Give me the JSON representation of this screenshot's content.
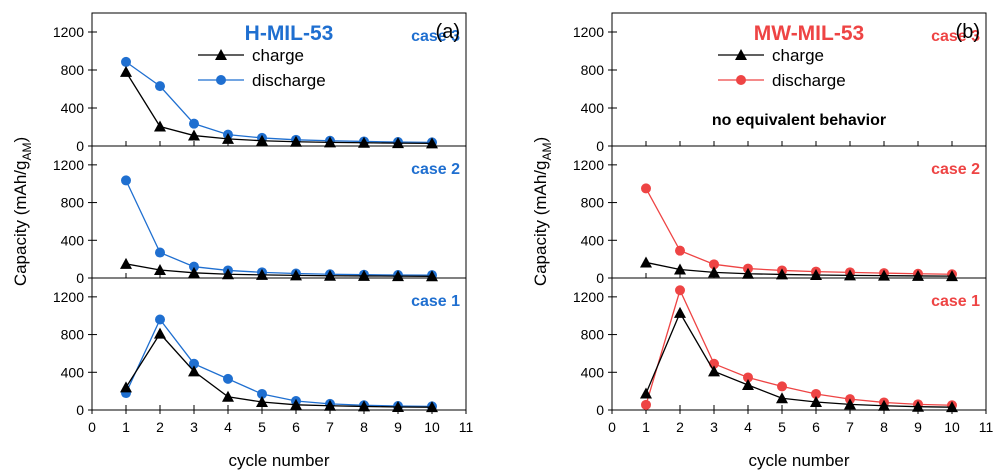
{
  "colors": {
    "axis": "#000000",
    "charge": "#000000",
    "blue": "#1f6fd0",
    "red": "#ee4444"
  },
  "chart_data": [
    {
      "type": "line",
      "title": "H-MIL-53",
      "panel_label": "(a)",
      "accent": "#1f6fd0",
      "xlabel": "cycle number",
      "ylabel": "Capacity (mAh/g",
      "ylabel_sub": "AM",
      "ylabel_end": ")",
      "xlim": [
        0,
        11
      ],
      "ylim": [
        0,
        1400
      ],
      "x_ticks": [
        "0",
        "1",
        "2",
        "3",
        "4",
        "5",
        "6",
        "7",
        "8",
        "9",
        "10",
        "11"
      ],
      "y_ticks": [
        "0",
        "400",
        "800",
        "1200"
      ],
      "legend": {
        "placement": "top",
        "charge": "charge",
        "discharge": "discharge"
      },
      "x": [
        1,
        2,
        3,
        4,
        5,
        6,
        7,
        8,
        9,
        10
      ],
      "subplots": [
        {
          "case": "case 3",
          "note": "",
          "series": [
            {
              "name": "charge",
              "values": [
                780,
                205,
                110,
                75,
                55,
                45,
                38,
                34,
                30,
                28
              ]
            },
            {
              "name": "discharge",
              "values": [
                885,
                630,
                235,
                120,
                85,
                65,
                55,
                48,
                42,
                38
              ]
            }
          ]
        },
        {
          "case": "case 2",
          "note": "",
          "series": [
            {
              "name": "charge",
              "values": [
                150,
                85,
                55,
                40,
                33,
                28,
                24,
                22,
                20,
                18
              ]
            },
            {
              "name": "discharge",
              "values": [
                1035,
                270,
                120,
                80,
                60,
                48,
                40,
                35,
                32,
                30
              ]
            }
          ]
        },
        {
          "case": "case 1",
          "note": "",
          "series": [
            {
              "name": "charge",
              "values": [
                240,
                810,
                410,
                140,
                85,
                55,
                45,
                38,
                32,
                30
              ]
            },
            {
              "name": "discharge",
              "values": [
                180,
                960,
                490,
                330,
                170,
                95,
                65,
                50,
                42,
                38
              ]
            }
          ]
        }
      ]
    },
    {
      "type": "line",
      "title": "MW-MIL-53",
      "panel_label": "(b)",
      "accent": "#ee4444",
      "xlabel": "cycle number",
      "ylabel": "Capacity (mAh/g",
      "ylabel_sub": "AM",
      "ylabel_end": ")",
      "xlim": [
        0,
        11
      ],
      "ylim": [
        0,
        1400
      ],
      "x_ticks": [
        "0",
        "1",
        "2",
        "3",
        "4",
        "5",
        "6",
        "7",
        "8",
        "9",
        "10",
        "11"
      ],
      "y_ticks": [
        "0",
        "400",
        "800",
        "1200"
      ],
      "legend": {
        "placement": "top",
        "charge": "charge",
        "discharge": "discharge"
      },
      "x": [
        1,
        2,
        3,
        4,
        5,
        6,
        7,
        8,
        9,
        10
      ],
      "subplots": [
        {
          "case": "case 3",
          "note": "no equivalent behavior",
          "series": []
        },
        {
          "case": "case 2",
          "note": "",
          "series": [
            {
              "name": "charge",
              "values": [
                165,
                90,
                60,
                45,
                38,
                32,
                28,
                25,
                22,
                20
              ]
            },
            {
              "name": "discharge",
              "values": [
                950,
                290,
                145,
                100,
                80,
                68,
                60,
                52,
                45,
                40
              ]
            }
          ]
        },
        {
          "case": "case 1",
          "note": "",
          "series": [
            {
              "name": "charge",
              "values": [
                175,
                1030,
                410,
                265,
                125,
                85,
                60,
                45,
                35,
                30
              ]
            },
            {
              "name": "discharge",
              "values": [
                55,
                1270,
                490,
                345,
                250,
                170,
                115,
                80,
                60,
                50
              ]
            }
          ]
        }
      ]
    }
  ]
}
